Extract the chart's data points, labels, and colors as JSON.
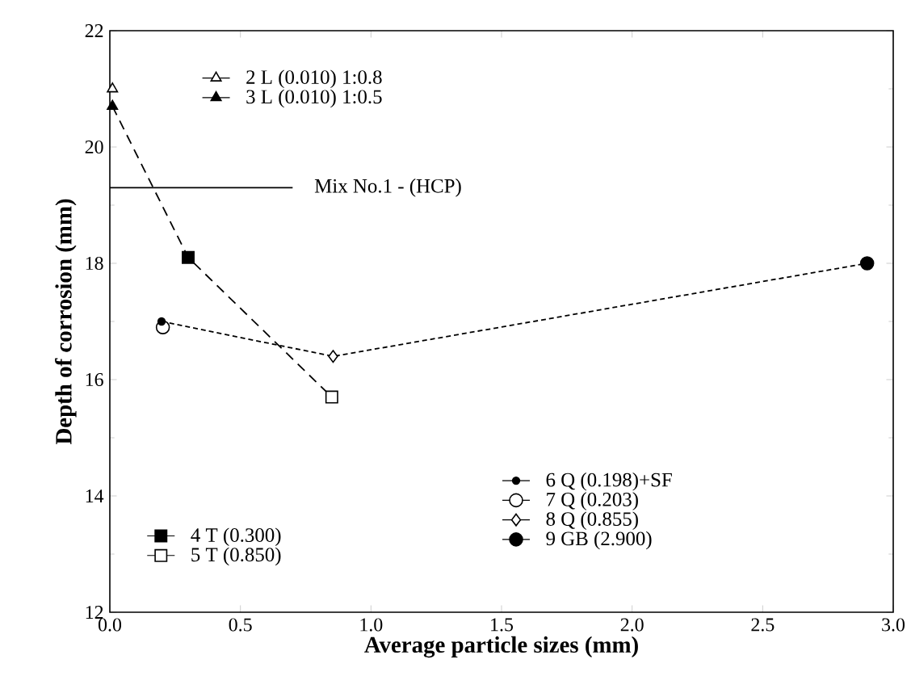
{
  "chart_data": {
    "type": "scatter",
    "xlabel": "Average particle sizes (mm)",
    "ylabel": "Depth of corrosion (mm)",
    "xlim": [
      0,
      3.0
    ],
    "ylim": [
      12,
      22
    ],
    "xticks": [
      {
        "value": 0,
        "label": "0.0"
      },
      0.5,
      {
        "value": 1,
        "label": "1.0"
      },
      1.5,
      {
        "value": 2,
        "label": "2.0"
      },
      2.5,
      {
        "value": 3,
        "label": "3.0"
      }
    ],
    "yticks": [
      12,
      14,
      16,
      18,
      20,
      22
    ],
    "grid": false,
    "legend": "top left",
    "series": [
      {
        "type": "line",
        "line_style": "dashed",
        "marker": "none",
        "color": "#000000",
        "x": [
          0.01,
          0.3,
          0.85
        ],
        "values": [
          20.7,
          18.1,
          15.7
        ]
      },
      {
        "type": "line",
        "line_style": "dotted",
        "marker": "none",
        "color": "#000000",
        "x": [
          0.198,
          0.855,
          2.9
        ],
        "values": [
          17.0,
          16.4,
          18.0
        ]
      },
      {
        "type": "line",
        "line_style": "solid",
        "marker": "none",
        "color": "#000000",
        "name": "Mix No.1 - (HCP)",
        "x": [
          0.0,
          0.7
        ],
        "values": [
          19.3,
          19.3
        ]
      },
      {
        "name": "2 L (0.010) 1:0.8",
        "marker": "triangle",
        "color": "#ffffff",
        "x": [
          0.01
        ],
        "values": [
          21.0
        ]
      },
      {
        "name": "3 L (0.010) 1:0.5",
        "marker": "triangle",
        "color": "#000000",
        "x": [
          0.01
        ],
        "values": [
          20.7
        ]
      },
      {
        "name": "4 T (0.300)",
        "marker": "square",
        "color": "#000000",
        "x": [
          0.3
        ],
        "values": [
          18.1
        ]
      },
      {
        "name": "5 T (0.850)",
        "marker": "square",
        "color": "#ffffff",
        "x": [
          0.85
        ],
        "values": [
          15.7
        ]
      },
      {
        "name": "6 Q (0.198)+SF",
        "marker": "circle",
        "color": "#000000",
        "x": [
          0.198
        ],
        "values": [
          17.0
        ]
      },
      {
        "name": "7 Q (0.203)",
        "marker": "circle",
        "color": "#ffffff",
        "x": [
          0.203
        ],
        "values": [
          16.9
        ]
      },
      {
        "name": "8 Q (0.855)",
        "marker": "diamond",
        "color": "#ffffff",
        "x": [
          0.855
        ],
        "values": [
          16.4
        ]
      },
      {
        "name": "9 GB (2.900)",
        "marker": "circle",
        "color": "#000000",
        "x": [
          2.9
        ],
        "values": [
          18.0
        ]
      }
    ]
  }
}
